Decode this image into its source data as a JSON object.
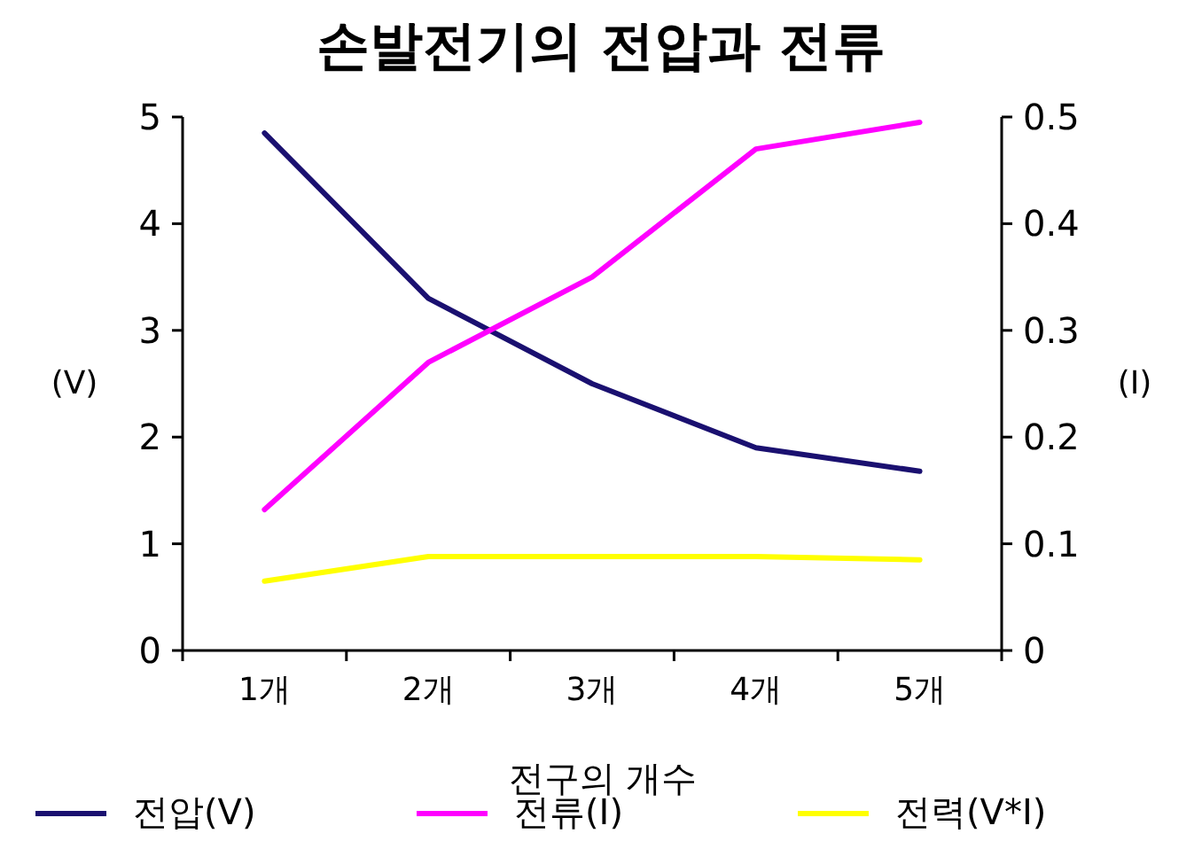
{
  "chart_data": {
    "type": "line",
    "title": "손발전기의 전압과 전류",
    "xlabel": "전구의 개수",
    "ylabel": "(V)",
    "y2label": "(I)",
    "categories": [
      "1개",
      "2개",
      "3개",
      "4개",
      "5개"
    ],
    "series": [
      {
        "name": "전압(V)",
        "color": "#1a1070",
        "values": [
          4.85,
          3.3,
          2.5,
          1.9,
          1.68
        ]
      },
      {
        "name": "전류(I)",
        "color": "#ff00ff",
        "axis": "y2",
        "values": [
          0.132,
          0.27,
          0.35,
          0.47,
          0.495
        ]
      },
      {
        "name": "전력(V*I)",
        "color": "#ffff00",
        "values": [
          0.65,
          0.88,
          0.88,
          0.88,
          0.85
        ]
      }
    ],
    "ylim": [
      0,
      5
    ],
    "yticks": [
      0,
      1,
      2,
      3,
      4,
      5
    ],
    "y2lim": [
      0,
      0.5
    ],
    "y2ticks": [
      0,
      0.1,
      0.2,
      0.3,
      0.4,
      0.5
    ],
    "legend": "bottom",
    "grid": false,
    "marker": "none",
    "line_style": "solid"
  }
}
